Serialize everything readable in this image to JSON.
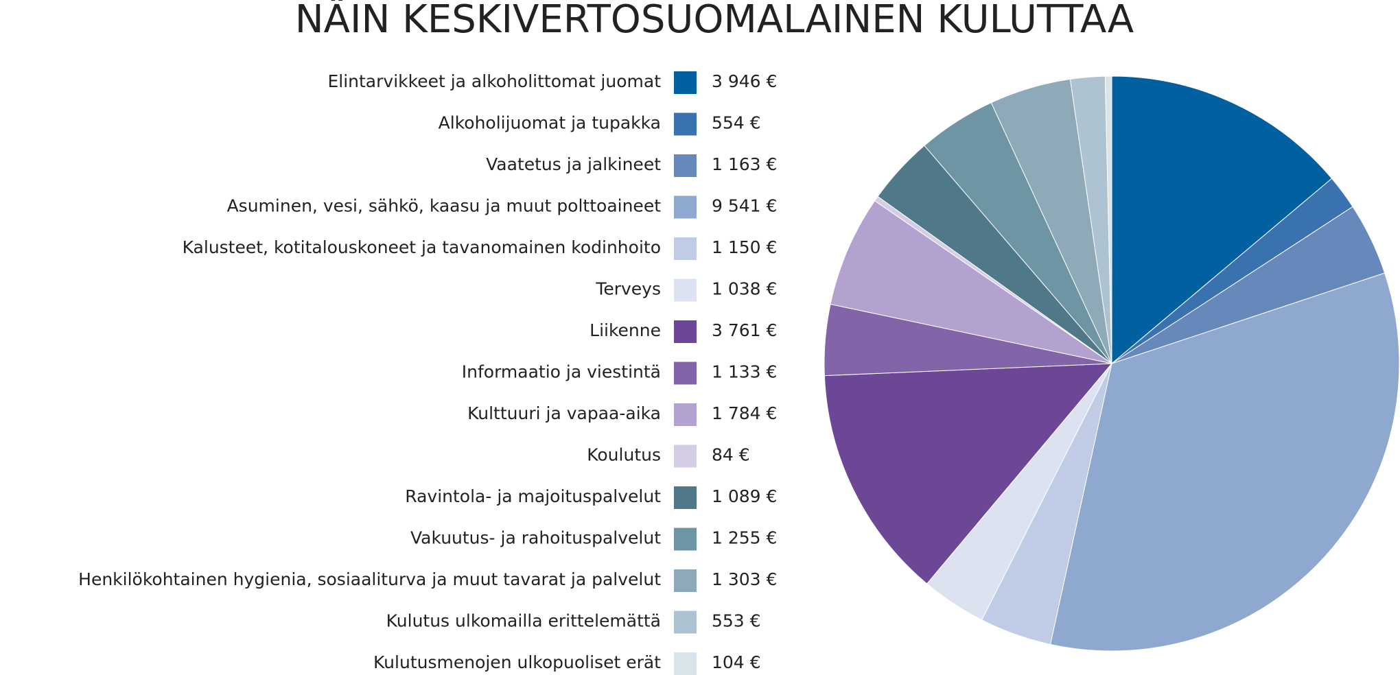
{
  "chart_data": {
    "type": "pie",
    "title": "NÄIN KESKIVERTOSUOMALAINEN KULUTTAA",
    "categories": [
      "Elintarvikkeet ja alkoholittomat juomat",
      "Alkoholijuomat ja tupakka",
      "Vaatetus ja jalkineet",
      "Asuminen, vesi, sähkö, kaasu ja muut polttoaineet",
      "Kalusteet, kotitalouskoneet ja tavanomainen kodinhoito",
      "Terveys",
      "Liikenne",
      "Informaatio ja viestintä",
      "Kulttuuri ja vapaa-aika",
      "Koulutus",
      "Ravintola- ja majoituspalvelut",
      "Vakuutus- ja rahoituspalvelut",
      "Henkilökohtainen hygienia, sosiaaliturva ja muut tavarat ja palvelut",
      "Kulutus ulkomailla erittelemättä",
      "Kulutusmenojen ulkopuoliset erät"
    ],
    "values": [
      3946,
      554,
      1163,
      9541,
      1150,
      1038,
      3761,
      1133,
      1784,
      84,
      1089,
      1255,
      1303,
      553,
      104
    ],
    "value_labels": [
      "3 946 €",
      "554 €",
      "1 163 €",
      "9 541 €",
      "1 150 €",
      "1 038 €",
      "3 761 €",
      "1 133 €",
      "1 784 €",
      "84 €",
      "1 089 €",
      "1 255 €",
      "1 303 €",
      "553 €",
      "104 €"
    ],
    "colors": [
      "#0060a0",
      "#3a72b0",
      "#6688bb",
      "#8fa8d0",
      "#c0cbe6",
      "#dde2f0",
      "#6b4796",
      "#8264a8",
      "#b3a2cf",
      "#d5cde4",
      "#4f7888",
      "#6e95a4",
      "#8eaab8",
      "#aec3d1",
      "#d8e3ea"
    ]
  }
}
